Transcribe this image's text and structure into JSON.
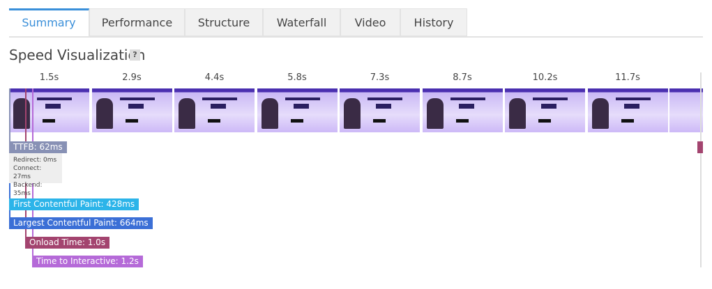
{
  "tabs": [
    "Summary",
    "Performance",
    "Structure",
    "Waterfall",
    "Video",
    "History"
  ],
  "active_tab": 0,
  "active_color": "#3a8fd9",
  "section": {
    "title": "Speed Visualization",
    "help": "?"
  },
  "frames": [
    "1.5s",
    "2.9s",
    "4.4s",
    "5.8s",
    "7.3s",
    "8.7s",
    "10.2s",
    "11.7s"
  ],
  "ttfb": {
    "label": "TTFB: 62ms",
    "color": "#8891b5",
    "details": [
      "Redirect: 0ms",
      "Connect: 27ms",
      "Backend: 35ms"
    ]
  },
  "markers": [
    {
      "label": "First Contentful Paint: 428ms",
      "color": "#2cb4e9"
    },
    {
      "label": "Largest Contentful Paint: 664ms",
      "color": "#3b6fd6"
    },
    {
      "label": "Onload Time: 1.0s",
      "color": "#a3446f"
    },
    {
      "label": "Time to Interactive: 1.2s",
      "color": "#b56ad8"
    }
  ]
}
